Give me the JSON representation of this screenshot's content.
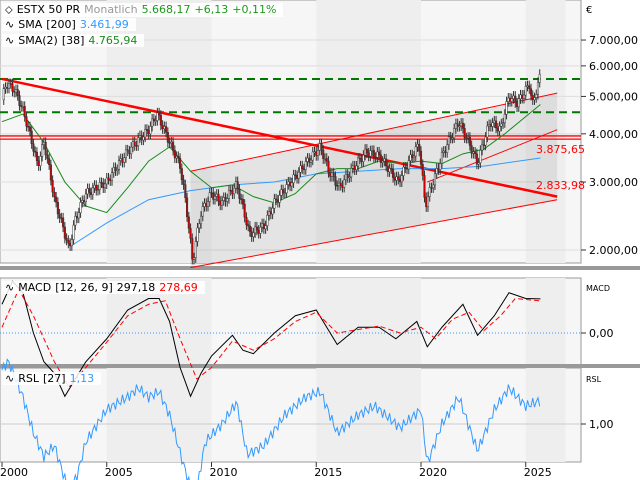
{
  "legend": {
    "symbol": "ESTX 50 PR",
    "interval": "Monatlich",
    "last": "5.668,17",
    "change": "+6,13",
    "change_pct": "+0,11%",
    "sma200_label": "SMA",
    "sma200_param": "[200]",
    "sma200_value": "3.461,99",
    "sma38_label": "SMA(2)",
    "sma38_param": "[38]",
    "sma38_value": "4.765,94",
    "macd_label": "MACD",
    "macd_param": "[12, 26, 9]",
    "macd_value": "297,18",
    "macd_signal": "278,69",
    "rsl_label": "RSL",
    "rsl_param": "[27]",
    "rsl_value": "1,13"
  },
  "colors": {
    "up": "#1a9a1a",
    "sma200": "#3399ff",
    "sma38": "#1a8a1a",
    "trend": "#ff0000",
    "support": "#007700",
    "signal": "#ff0000"
  },
  "chart_data": [
    {
      "type": "candlestick",
      "name": "ESTX 50 PR",
      "yscale": "log",
      "currency": "€",
      "ylim": [
        1750,
        7600
      ],
      "yticks": [
        "2.000,00",
        "3.000,00",
        "4.000,00",
        "5.000,00",
        "6.000,00",
        "7.000,00"
      ],
      "ytick_values": [
        2000,
        3000,
        4000,
        5000,
        6000,
        7000
      ],
      "xticks": [
        "2000",
        "2005",
        "2010",
        "2015",
        "2020",
        "2025"
      ],
      "price": [
        [
          2000.0,
          4900
        ],
        [
          2000.2,
          5400
        ],
        [
          2000.6,
          5200
        ],
        [
          2001.0,
          4600
        ],
        [
          2001.7,
          3300
        ],
        [
          2002.0,
          3800
        ],
        [
          2002.5,
          2700
        ],
        [
          2003.2,
          2000
        ],
        [
          2003.5,
          2400
        ],
        [
          2004.0,
          2800
        ],
        [
          2005.0,
          3000
        ],
        [
          2006.0,
          3600
        ],
        [
          2007.0,
          4100
        ],
        [
          2007.4,
          4500
        ],
        [
          2008.0,
          3800
        ],
        [
          2008.5,
          3300
        ],
        [
          2009.1,
          1850
        ],
        [
          2009.5,
          2500
        ],
        [
          2010.0,
          2800
        ],
        [
          2010.5,
          2650
        ],
        [
          2011.2,
          2950
        ],
        [
          2011.8,
          2200
        ],
        [
          2012.5,
          2300
        ],
        [
          2013.0,
          2650
        ],
        [
          2014.0,
          3100
        ],
        [
          2015.2,
          3700
        ],
        [
          2015.6,
          3200
        ],
        [
          2016.1,
          2900
        ],
        [
          2017.4,
          3600
        ],
        [
          2018.0,
          3500
        ],
        [
          2018.9,
          3000
        ],
        [
          2019.9,
          3750
        ],
        [
          2020.2,
          2600
        ],
        [
          2020.8,
          3250
        ],
        [
          2021.0,
          3500
        ],
        [
          2021.8,
          4300
        ],
        [
          2022.7,
          3350
        ],
        [
          2023.3,
          4300
        ],
        [
          2023.8,
          4100
        ],
        [
          2024.2,
          5000
        ],
        [
          2024.6,
          4800
        ],
        [
          2025.2,
          5400
        ],
        [
          2025.3,
          4700
        ],
        [
          2025.7,
          5668
        ]
      ],
      "sma200": [
        [
          2003.3,
          2050
        ],
        [
          2005,
          2350
        ],
        [
          2007,
          2700
        ],
        [
          2009,
          2850
        ],
        [
          2011,
          2950
        ],
        [
          2013,
          3000
        ],
        [
          2015,
          3150
        ],
        [
          2017,
          3200
        ],
        [
          2019,
          3250
        ],
        [
          2021,
          3250
        ],
        [
          2023,
          3300
        ],
        [
          2025.7,
          3462
        ]
      ],
      "sma38": [
        [
          2000,
          4300
        ],
        [
          2001,
          4500
        ],
        [
          2002,
          3800
        ],
        [
          2003,
          3000
        ],
        [
          2004,
          2600
        ],
        [
          2005,
          2500
        ],
        [
          2006,
          2900
        ],
        [
          2007,
          3400
        ],
        [
          2008,
          3700
        ],
        [
          2009,
          3200
        ],
        [
          2010,
          2900
        ],
        [
          2011,
          2950
        ],
        [
          2012,
          2750
        ],
        [
          2013,
          2650
        ],
        [
          2014,
          2800
        ],
        [
          2015,
          3150
        ],
        [
          2016,
          3250
        ],
        [
          2017,
          3250
        ],
        [
          2018,
          3400
        ],
        [
          2019,
          3350
        ],
        [
          2020,
          3400
        ],
        [
          2021,
          3350
        ],
        [
          2022,
          3550
        ],
        [
          2023,
          3650
        ],
        [
          2024,
          4000
        ],
        [
          2025.7,
          4766
        ]
      ],
      "lines": {
        "downtrend": [
          [
            2000,
            5550
          ],
          [
            2026.5,
            2750
          ]
        ],
        "downtrend_label": "2.833,98",
        "horizontal_red": [
          3875.65,
          3950
        ],
        "horizontal_label": "3.875,65",
        "support_dashed": [
          5550,
          4550
        ],
        "channel_lower": [
          [
            2009,
            1800
          ],
          [
            2026.5,
            2700
          ]
        ],
        "channel_upper": [
          [
            2009,
            3200
          ],
          [
            2026.5,
            5100
          ]
        ],
        "uptrend": [
          [
            2020.3,
            3000
          ],
          [
            2026.5,
            4100
          ]
        ]
      }
    },
    {
      "type": "line",
      "name": "MACD",
      "yticks": [
        "0,00"
      ],
      "ytick_values": [
        0
      ],
      "ylim": [
        -600,
        700
      ],
      "macd": [
        [
          2000,
          250
        ],
        [
          2000.5,
          450
        ],
        [
          2001,
          350
        ],
        [
          2001.5,
          0
        ],
        [
          2002,
          -250
        ],
        [
          2002.5,
          -350
        ],
        [
          2003,
          -550
        ],
        [
          2004,
          -250
        ],
        [
          2005,
          -50
        ],
        [
          2006,
          200
        ],
        [
          2007,
          300
        ],
        [
          2007.5,
          300
        ],
        [
          2008,
          100
        ],
        [
          2008.5,
          -300
        ],
        [
          2009,
          -550
        ],
        [
          2009.5,
          -350
        ],
        [
          2010,
          -200
        ],
        [
          2011,
          -20
        ],
        [
          2011.5,
          -150
        ],
        [
          2012,
          -180
        ],
        [
          2013,
          0
        ],
        [
          2014,
          150
        ],
        [
          2015,
          200
        ],
        [
          2016,
          -100
        ],
        [
          2017,
          50
        ],
        [
          2018,
          50
        ],
        [
          2018.8,
          -50
        ],
        [
          2019.8,
          100
        ],
        [
          2020.3,
          -120
        ],
        [
          2021,
          50
        ],
        [
          2022,
          250
        ],
        [
          2022.7,
          -20
        ],
        [
          2023.5,
          150
        ],
        [
          2024.2,
          350
        ],
        [
          2025,
          300
        ],
        [
          2025.7,
          297
        ]
      ],
      "signal": [
        [
          2000,
          50
        ],
        [
          2000.8,
          380
        ],
        [
          2001.5,
          150
        ],
        [
          2002.5,
          -250
        ],
        [
          2003.2,
          -470
        ],
        [
          2004,
          -300
        ],
        [
          2005,
          -80
        ],
        [
          2006,
          150
        ],
        [
          2007,
          250
        ],
        [
          2007.8,
          280
        ],
        [
          2008.5,
          -50
        ],
        [
          2009.3,
          -400
        ],
        [
          2010,
          -300
        ],
        [
          2011,
          -70
        ],
        [
          2012,
          -150
        ],
        [
          2013,
          -50
        ],
        [
          2014,
          100
        ],
        [
          2015,
          180
        ],
        [
          2016,
          0
        ],
        [
          2017,
          30
        ],
        [
          2018,
          60
        ],
        [
          2019,
          0
        ],
        [
          2020,
          50
        ],
        [
          2020.7,
          -50
        ],
        [
          2021.5,
          120
        ],
        [
          2022.3,
          180
        ],
        [
          2023,
          20
        ],
        [
          2023.8,
          150
        ],
        [
          2024.5,
          300
        ],
        [
          2025.7,
          279
        ]
      ]
    },
    {
      "type": "line",
      "name": "RSL",
      "yticks": [
        "1,00"
      ],
      "ytick_values": [
        1
      ],
      "ylim": [
        0.55,
        1.45
      ],
      "rsl": [
        [
          2000,
          1.3
        ],
        [
          2000.3,
          1.35
        ],
        [
          2001,
          1.15
        ],
        [
          2001.5,
          0.95
        ],
        [
          2002,
          0.82
        ],
        [
          2002.5,
          0.88
        ],
        [
          2003.2,
          0.62
        ],
        [
          2003.6,
          0.72
        ],
        [
          2004,
          0.9
        ],
        [
          2005,
          1.08
        ],
        [
          2006,
          1.15
        ],
        [
          2006.5,
          1.2
        ],
        [
          2007,
          1.15
        ],
        [
          2007.5,
          1.18
        ],
        [
          2008,
          1.05
        ],
        [
          2008.6,
          0.8
        ],
        [
          2009.2,
          0.57
        ],
        [
          2009.7,
          0.9
        ],
        [
          2010.5,
          1.0
        ],
        [
          2011.2,
          1.12
        ],
        [
          2011.7,
          0.83
        ],
        [
          2012.5,
          0.88
        ],
        [
          2013.5,
          1.05
        ],
        [
          2014.5,
          1.15
        ],
        [
          2015.2,
          1.18
        ],
        [
          2016,
          0.95
        ],
        [
          2017,
          1.05
        ],
        [
          2017.8,
          1.1
        ],
        [
          2019,
          0.98
        ],
        [
          2020,
          1.08
        ],
        [
          2020.3,
          0.78
        ],
        [
          2021,
          1.0
        ],
        [
          2021.8,
          1.15
        ],
        [
          2022.7,
          0.85
        ],
        [
          2023.5,
          1.08
        ],
        [
          2024.2,
          1.2
        ],
        [
          2025,
          1.1
        ],
        [
          2025.7,
          1.13
        ]
      ]
    }
  ]
}
